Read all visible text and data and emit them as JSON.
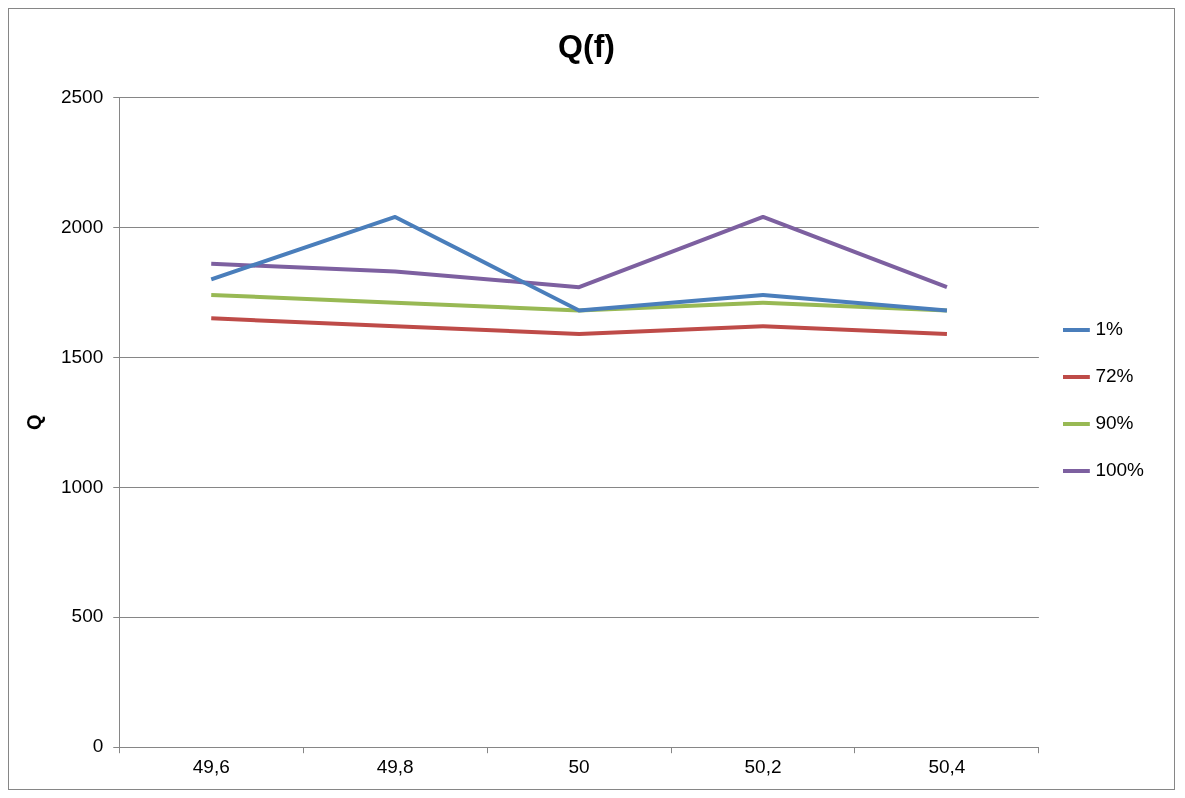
{
  "chart_data": {
    "type": "line",
    "title": "Q(f)",
    "ylabel": "Q",
    "categories": [
      "49,6",
      "49,8",
      "50",
      "50,2",
      "50,4"
    ],
    "series": [
      {
        "name": "1%",
        "color": "#4a7ebb",
        "values": [
          1800,
          2040,
          1680,
          1740,
          1680
        ]
      },
      {
        "name": "72%",
        "color": "#be4b48",
        "values": [
          1650,
          1620,
          1590,
          1620,
          1590
        ]
      },
      {
        "name": "90%",
        "color": "#98b954",
        "values": [
          1740,
          1710,
          1680,
          1710,
          1680
        ]
      },
      {
        "name": "100%",
        "color": "#7d60a0",
        "values": [
          1860,
          1830,
          1770,
          2040,
          1770
        ]
      }
    ],
    "ylim": [
      0,
      2500
    ],
    "yticks": [
      0,
      500,
      1000,
      1500,
      2000,
      2500
    ],
    "grid": "y",
    "legend": "right",
    "marker": "none",
    "line_style": "solid"
  }
}
